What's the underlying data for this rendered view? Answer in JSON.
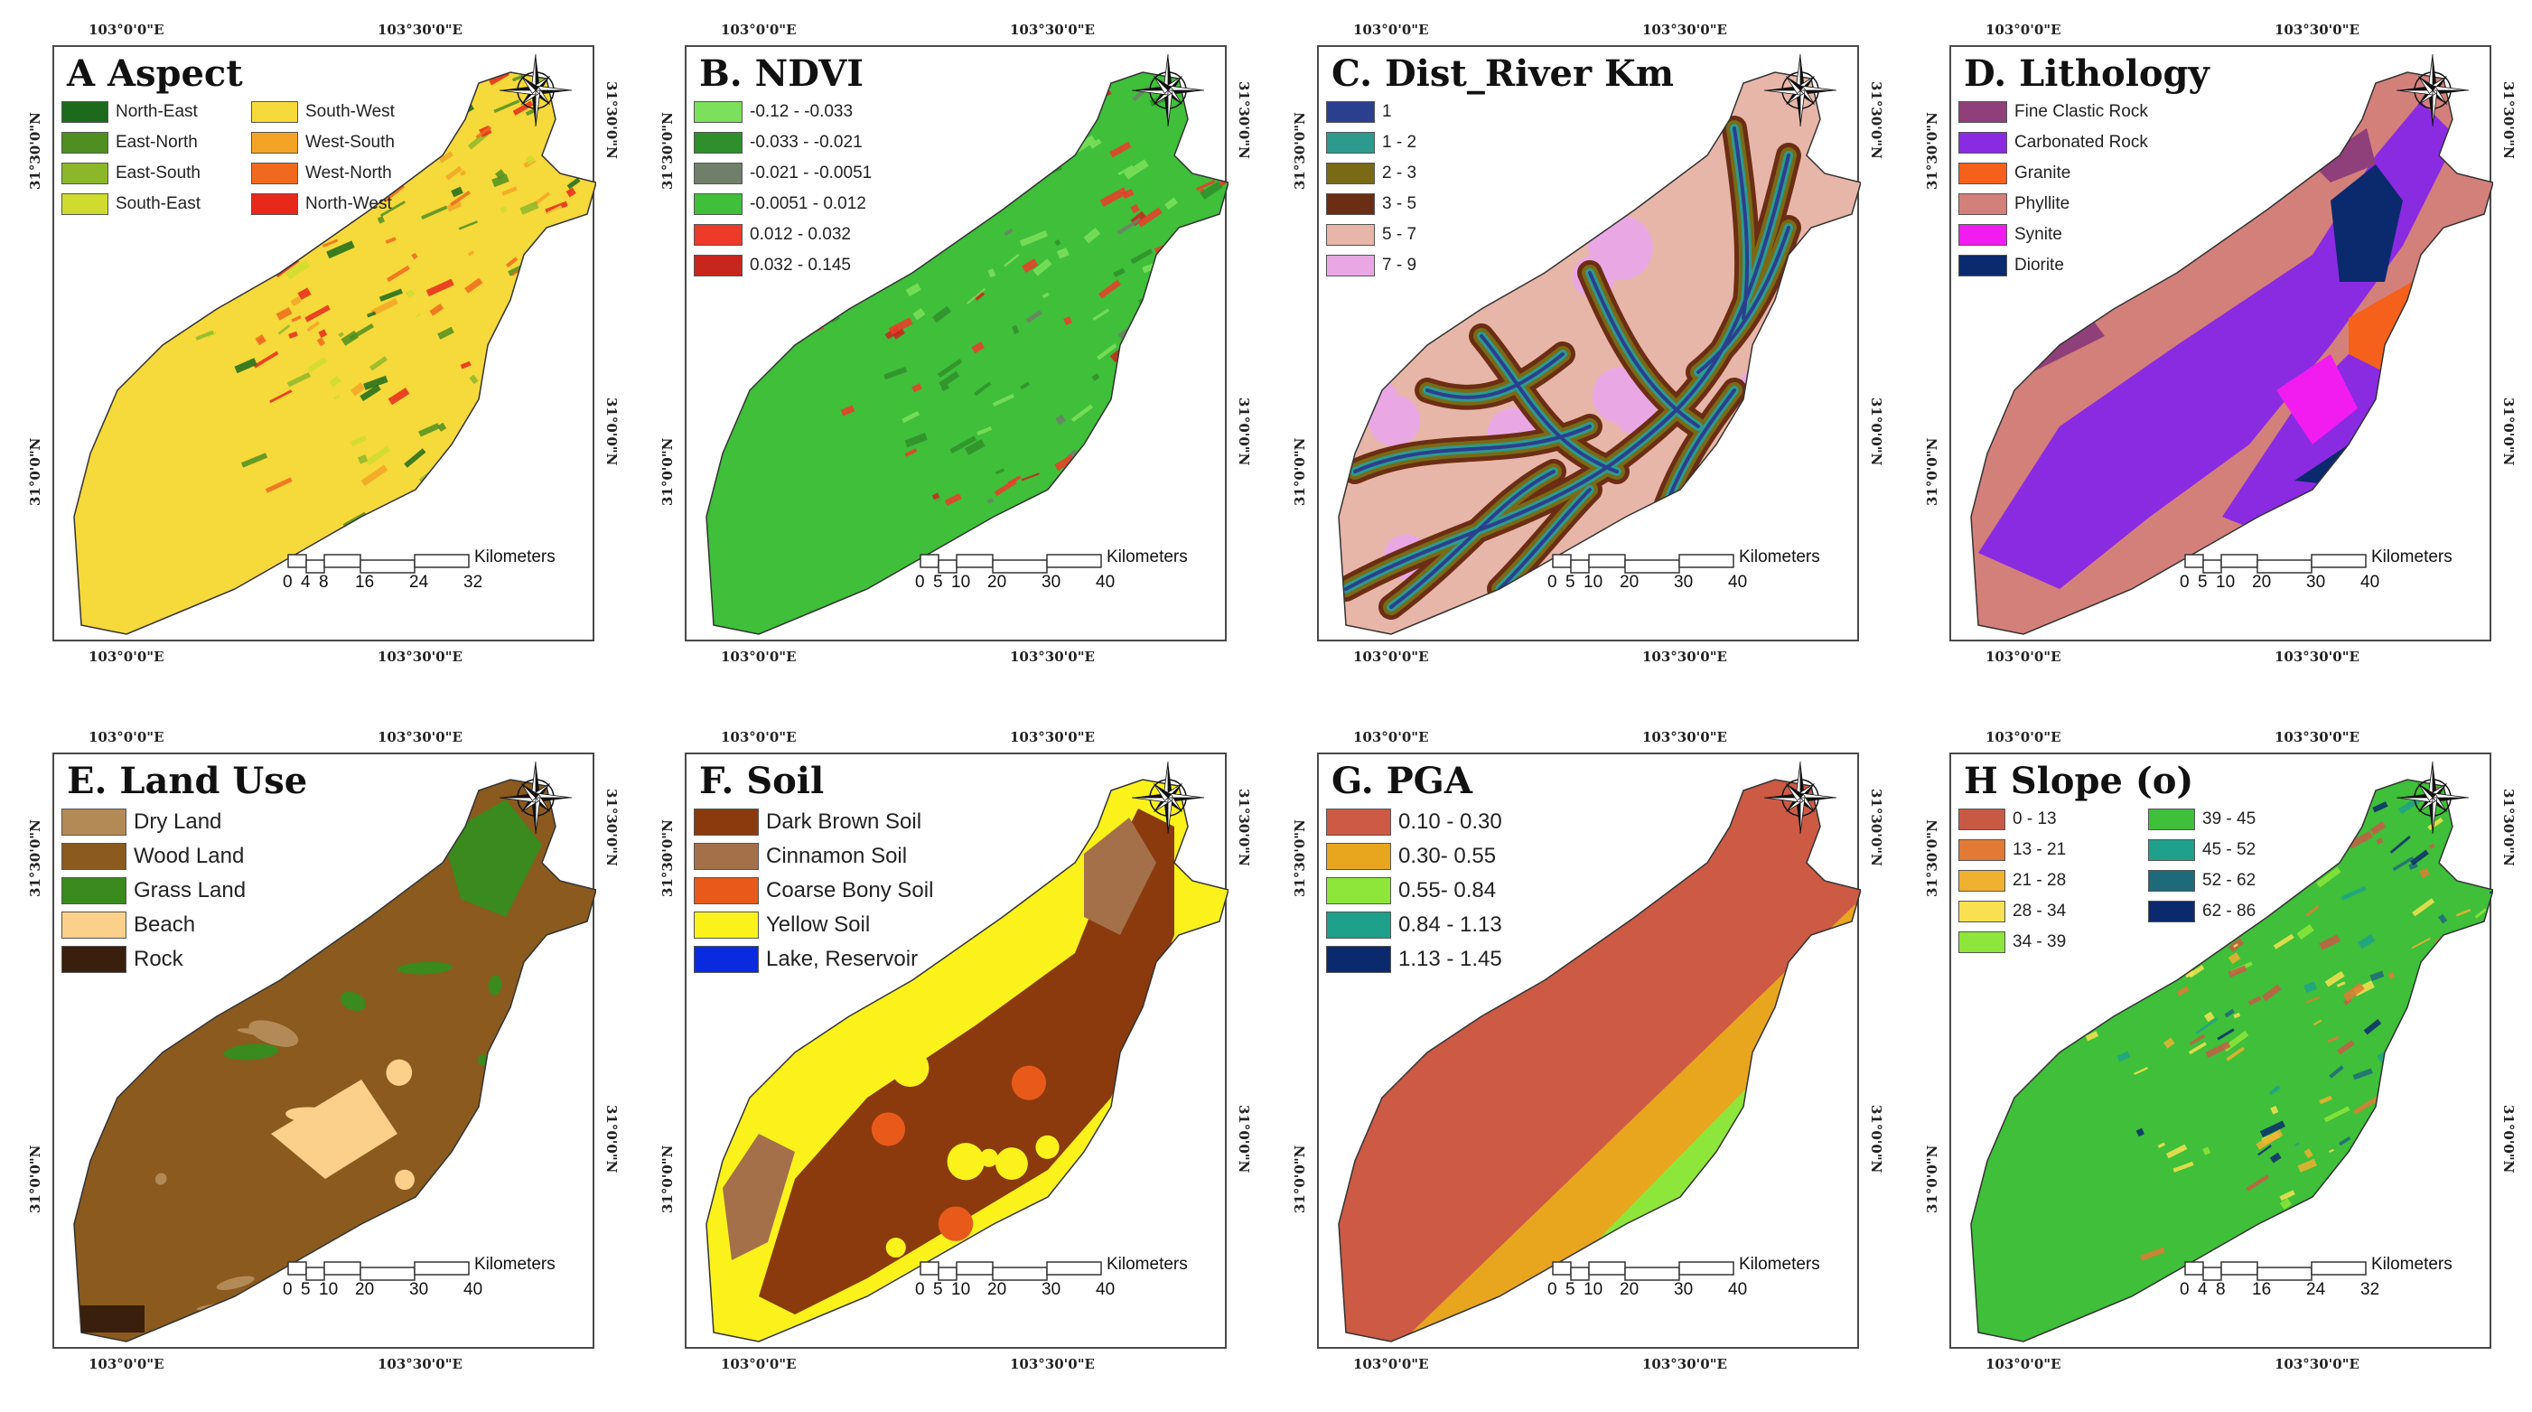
{
  "coords": {
    "lon_left": "103°0'0\"E",
    "lon_right": "103°30'0\"E",
    "lat_upper": "31°30'0\"N",
    "lat_lower": "31°0'0\"N"
  },
  "scale_unit": "Kilometers",
  "panels": [
    {
      "id": "aspect",
      "title": "A Aspect",
      "legend_columns": 2,
      "legend": [
        {
          "label": "North-East",
          "color": "#1b6b1b"
        },
        {
          "label": "East-North",
          "color": "#4f8f21"
        },
        {
          "label": "East-South",
          "color": "#8db72a"
        },
        {
          "label": "South-East",
          "color": "#cfdc2f"
        },
        {
          "label": "South-West",
          "color": "#f6d93a"
        },
        {
          "label": "West-South",
          "color": "#f3a426"
        },
        {
          "label": "West-North",
          "color": "#ef6a1c"
        },
        {
          "label": "North-West",
          "color": "#e8281b"
        }
      ],
      "scale_ticks": [
        "0",
        "4",
        "8",
        "16",
        "24",
        "32"
      ]
    },
    {
      "id": "ndvi",
      "title": "B. NDVI",
      "legend_columns": 1,
      "legend": [
        {
          "label": "-0.12 - -0.033",
          "color": "#7de05c"
        },
        {
          "label": "-0.033 - -0.021",
          "color": "#2f8f2a"
        },
        {
          "label": "-0.021 - -0.0051",
          "color": "#6f7f6a"
        },
        {
          "label": "-0.0051 - 0.012",
          "color": "#3fbf3a"
        },
        {
          "label": "0.012 - 0.032",
          "color": "#ee3a2a"
        },
        {
          "label": "0.032 - 0.145",
          "color": "#c8251c"
        }
      ],
      "scale_ticks": [
        "0",
        "5",
        "10",
        "20",
        "30",
        "40"
      ]
    },
    {
      "id": "river",
      "title": "C. Dist_River Km",
      "legend_columns": 1,
      "legend": [
        {
          "label": "1",
          "color": "#2b3f8f"
        },
        {
          "label": "1 - 2",
          "color": "#2e9a8e"
        },
        {
          "label": "2 - 3",
          "color": "#7a6a16"
        },
        {
          "label": "3 - 5",
          "color": "#6b2e14"
        },
        {
          "label": "5 - 7",
          "color": "#e8b6a8"
        },
        {
          "label": "7 - 9",
          "color": "#e9a8e4"
        }
      ],
      "scale_ticks": [
        "0",
        "5",
        "10",
        "20",
        "30",
        "40"
      ]
    },
    {
      "id": "lithology",
      "title": "D. Lithology",
      "legend_columns": 1,
      "legend": [
        {
          "label": "Fine Clastic Rock",
          "color": "#8f3f7a"
        },
        {
          "label": "Carbonated Rock",
          "color": "#8a2be2"
        },
        {
          "label": "Granite",
          "color": "#f5601a"
        },
        {
          "label": "Phyllite",
          "color": "#d4807a"
        },
        {
          "label": "Synite",
          "color": "#f21cf0"
        },
        {
          "label": "Diorite",
          "color": "#0b2a6e"
        }
      ],
      "scale_ticks": [
        "0",
        "5",
        "10",
        "20",
        "30",
        "40"
      ]
    },
    {
      "id": "landuse",
      "title": "E. Land Use",
      "legend_columns": 1,
      "legend": [
        {
          "label": "Dry Land",
          "color": "#b38a55"
        },
        {
          "label": "Wood Land",
          "color": "#8b5a1e"
        },
        {
          "label": "Grass Land",
          "color": "#3a8a1e"
        },
        {
          "label": "Beach",
          "color": "#fbd08a"
        },
        {
          "label": "Rock",
          "color": "#3a1f0c"
        }
      ],
      "scale_ticks": [
        "0",
        "5",
        "10",
        "20",
        "30",
        "40"
      ]
    },
    {
      "id": "soil",
      "title": "F. Soil",
      "legend_columns": 1,
      "legend": [
        {
          "label": "Dark Brown Soil",
          "color": "#8b3a0e"
        },
        {
          "label": "Cinnamon Soil",
          "color": "#a4704a"
        },
        {
          "label": "Coarse Bony Soil",
          "color": "#e85a1a"
        },
        {
          "label": "Yellow Soil",
          "color": "#fbf21c"
        },
        {
          "label": "Lake, Reservoir",
          "color": "#0a2ae0"
        }
      ],
      "scale_ticks": [
        "0",
        "5",
        "10",
        "20",
        "30",
        "40"
      ]
    },
    {
      "id": "pga",
      "title": "G. PGA",
      "legend_columns": 1,
      "legend": [
        {
          "label": "0.10 - 0.30",
          "color": "#cc5a45"
        },
        {
          "label": "0.30- 0.55",
          "color": "#e8a61e"
        },
        {
          "label": "0.55- 0.84",
          "color": "#8ee63a"
        },
        {
          "label": "0.84 - 1.13",
          "color": "#1ea08a"
        },
        {
          "label": "1.13 - 1.45",
          "color": "#0b2a6e"
        }
      ],
      "scale_ticks": [
        "0",
        "5",
        "10",
        "20",
        "30",
        "40"
      ]
    },
    {
      "id": "slope",
      "title": "H Slope (o)",
      "legend_columns": 2,
      "legend": [
        {
          "label": "0 - 13",
          "color": "#c85a45"
        },
        {
          "label": "13 - 21",
          "color": "#e07a35"
        },
        {
          "label": "21 - 28",
          "color": "#f0b030"
        },
        {
          "label": "28 - 34",
          "color": "#f8e050"
        },
        {
          "label": "34 - 39",
          "color": "#8ee63a"
        },
        {
          "label": "39 - 45",
          "color": "#3fbf3a"
        },
        {
          "label": "45 - 52",
          "color": "#1ea08a"
        },
        {
          "label": "52 - 62",
          "color": "#1e6a7a"
        },
        {
          "label": "62 - 86",
          "color": "#0b2a6e"
        }
      ],
      "scale_ticks": [
        "0",
        "4",
        "8",
        "16",
        "24",
        "32"
      ]
    }
  ]
}
